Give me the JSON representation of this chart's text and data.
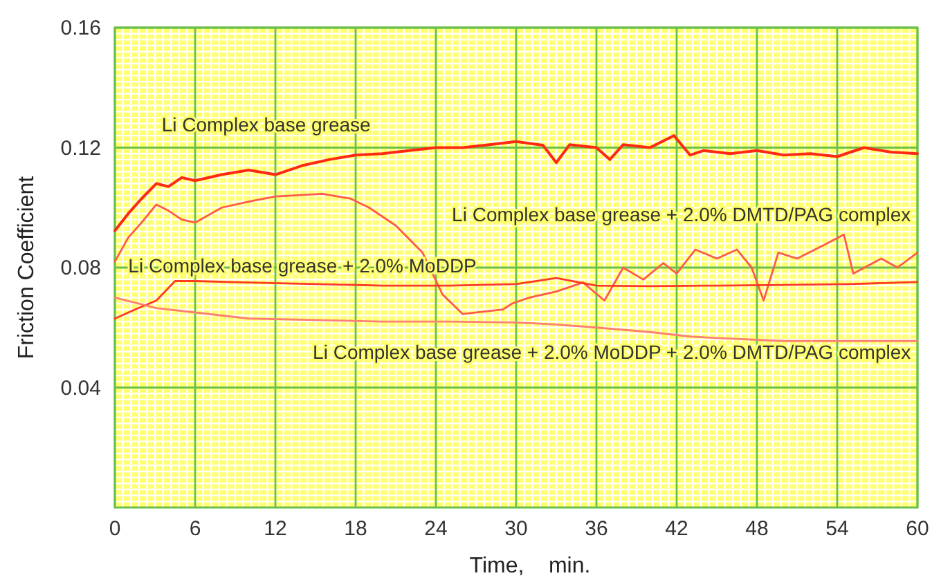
{
  "chart_data": {
    "type": "line",
    "xlabel": "Time,    min.",
    "ylabel": "Friction Coefficient",
    "xlim": [
      0,
      60
    ],
    "ylim": [
      0,
      0.16
    ],
    "xticks": [
      0,
      6,
      12,
      18,
      24,
      30,
      36,
      42,
      48,
      54,
      60
    ],
    "yticks": [
      0.04,
      0.08,
      0.12,
      0.16
    ],
    "grid": true,
    "marker": "none",
    "line_style": "solid",
    "series": [
      {
        "name": "Li Complex base grease",
        "color": "#ff2a12",
        "x": [
          0,
          1,
          2,
          3.1,
          4,
          5,
          6,
          8,
          10,
          12,
          14,
          16,
          18,
          20,
          22,
          24,
          26,
          28,
          30,
          32,
          33,
          34,
          36,
          37,
          38,
          40,
          41.8,
          43,
          44,
          46,
          48,
          50,
          52,
          54,
          56,
          58,
          60
        ],
        "values": [
          0.0923,
          0.098,
          0.103,
          0.108,
          0.107,
          0.11,
          0.109,
          0.111,
          0.1125,
          0.111,
          0.114,
          0.116,
          0.1175,
          0.118,
          0.119,
          0.12,
          0.12,
          0.121,
          0.122,
          0.1208,
          0.115,
          0.121,
          0.12,
          0.116,
          0.121,
          0.12,
          0.124,
          0.1175,
          0.119,
          0.118,
          0.119,
          0.1175,
          0.118,
          0.117,
          0.12,
          0.1185,
          0.118
        ]
      },
      {
        "name": "Li Complex base grease + 2.0% DMTD/PAG complex",
        "color": "#ff5a4a",
        "x": [
          0,
          1,
          2,
          3.1,
          4,
          5,
          6,
          8,
          10,
          12,
          15.5,
          17.6,
          19,
          21,
          23,
          24.5,
          26,
          29,
          29.7,
          31,
          33,
          35,
          36.6,
          38,
          39.5,
          41,
          42,
          43.4,
          45,
          46.5,
          47.6,
          48.5,
          49.6,
          51,
          53,
          54.5,
          55.2,
          57.3,
          58.5,
          60
        ],
        "values": [
          0.082,
          0.09,
          0.095,
          0.101,
          0.099,
          0.096,
          0.095,
          0.1,
          0.102,
          0.1037,
          0.1046,
          0.103,
          0.1,
          0.094,
          0.085,
          0.071,
          0.0645,
          0.066,
          0.068,
          0.07,
          0.072,
          0.075,
          0.069,
          0.08,
          0.076,
          0.0815,
          0.078,
          0.086,
          0.083,
          0.086,
          0.08,
          0.069,
          0.085,
          0.083,
          0.0875,
          0.091,
          0.078,
          0.083,
          0.08,
          0.085
        ]
      },
      {
        "name": "Li Complex base grease + 2.0% MoDDP",
        "color": "#ff3a22",
        "x": [
          0,
          1.5,
          3.1,
          4.5,
          6,
          10,
          15,
          20,
          25,
          30,
          33,
          36,
          40,
          45,
          50,
          55,
          60
        ],
        "values": [
          0.063,
          0.066,
          0.069,
          0.0755,
          0.0755,
          0.075,
          0.0745,
          0.074,
          0.074,
          0.0745,
          0.0765,
          0.074,
          0.0738,
          0.074,
          0.0742,
          0.0745,
          0.0752
        ]
      },
      {
        "name": "Li Complex base grease + 2.0% MoDDP  + 2.0% DMTD/PAG complex",
        "color": "#ff8070",
        "x": [
          0,
          3.1,
          10,
          15,
          20,
          25,
          30,
          33,
          36,
          40,
          43,
          45,
          50,
          55,
          60
        ],
        "values": [
          0.07,
          0.0665,
          0.063,
          0.0625,
          0.062,
          0.062,
          0.0617,
          0.061,
          0.06,
          0.0585,
          0.057,
          0.0565,
          0.0555,
          0.0555,
          0.0555
        ]
      }
    ]
  }
}
